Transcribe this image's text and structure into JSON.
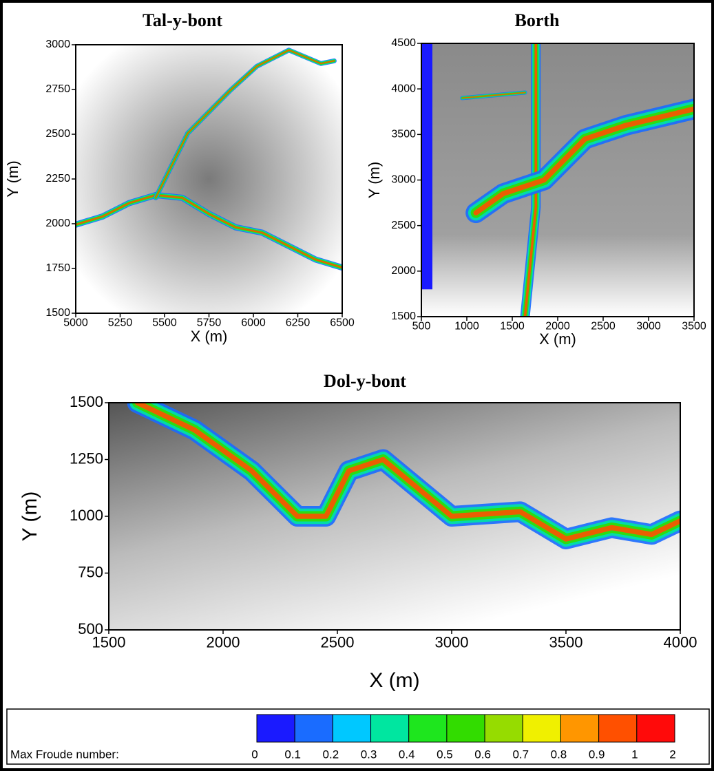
{
  "chart_data": [
    {
      "type": "heatmap",
      "title": "Tal-y-bont",
      "xlabel": "X (m)",
      "ylabel": "Y (m)",
      "xlim": [
        5000,
        6500
      ],
      "ylim": [
        1500,
        3000
      ],
      "xticks": [
        5000,
        5250,
        5500,
        5750,
        6000,
        6250,
        6500
      ],
      "yticks": [
        1500,
        1750,
        2000,
        2250,
        2500,
        2750,
        3000
      ]
    },
    {
      "type": "heatmap",
      "title": "Borth",
      "xlabel": "X (m)",
      "ylabel": "Y (m)",
      "xlim": [
        500,
        3500
      ],
      "ylim": [
        1500,
        4500
      ],
      "xticks": [
        500,
        1000,
        1500,
        2000,
        2500,
        3000,
        3500
      ],
      "yticks": [
        1500,
        2000,
        2500,
        3000,
        3500,
        4000,
        4500
      ]
    },
    {
      "type": "heatmap",
      "title": "Dol-y-bont",
      "xlabel": "X (m)",
      "ylabel": "Y (m)",
      "xlim": [
        1500,
        4000
      ],
      "ylim": [
        500,
        1500
      ],
      "xticks": [
        1500,
        2000,
        2500,
        3000,
        3500,
        4000
      ],
      "yticks": [
        500,
        750,
        1000,
        1250,
        1500
      ]
    }
  ],
  "colorbar": {
    "label": "Max Froude number:",
    "ticks": [
      0,
      0.1,
      0.2,
      0.3,
      0.4,
      0.5,
      0.6,
      0.7,
      0.8,
      0.9,
      1,
      2
    ],
    "colors": [
      "#1a1aff",
      "#1a6cff",
      "#00c8ff",
      "#00e6a0",
      "#1ee61e",
      "#32dc00",
      "#96dc00",
      "#f0f000",
      "#ff9600",
      "#ff5000",
      "#ff0a0a"
    ]
  }
}
